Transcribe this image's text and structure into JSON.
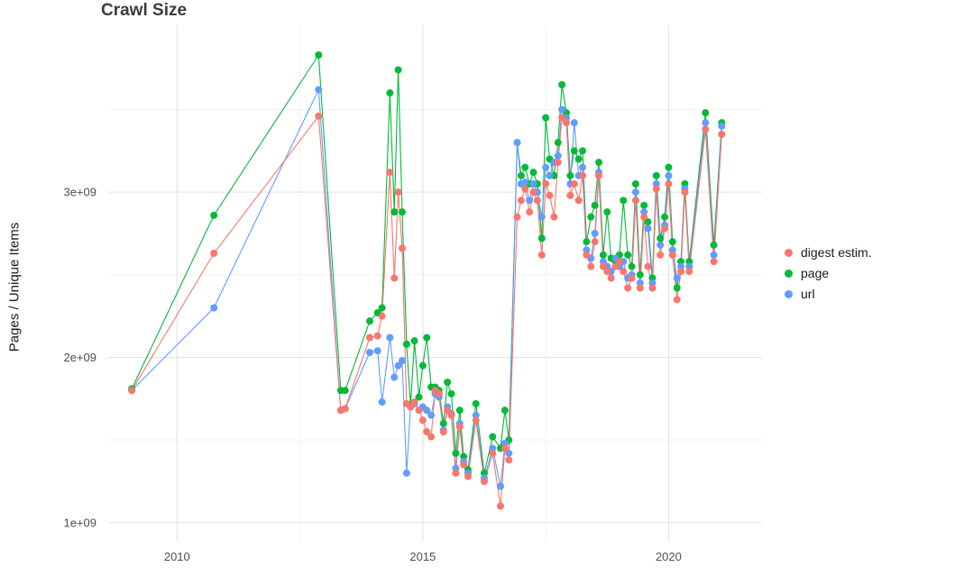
{
  "chart_data": {
    "type": "line",
    "title": "Crawl Size",
    "xlabel": "",
    "ylabel": "Pages / Unique Items",
    "y_unit": "pages (values in billions, 1e9)",
    "legend_position": "right",
    "grid": true,
    "xlim": [
      2008.6,
      2021.9
    ],
    "ylim": [
      0.89,
      4.01
    ],
    "x_ticks": [
      2010,
      2015,
      2020
    ],
    "x_tick_labels": [
      "2010",
      "2015",
      "2020"
    ],
    "x_minor": [
      2012.5,
      2017.5
    ],
    "y_ticks": [
      1,
      2,
      3
    ],
    "y_tick_labels": [
      "1e+09",
      "2e+09",
      "3e+09"
    ],
    "y_minor": [
      1.5,
      2.5,
      3.5
    ],
    "x": [
      2009.08,
      2010.75,
      2012.88,
      2013.33,
      2013.42,
      2013.92,
      2014.08,
      2014.17,
      2014.33,
      2014.42,
      2014.5,
      2014.58,
      2014.67,
      2014.75,
      2014.83,
      2014.92,
      2015.0,
      2015.08,
      2015.17,
      2015.25,
      2015.33,
      2015.42,
      2015.5,
      2015.58,
      2015.67,
      2015.75,
      2015.83,
      2015.92,
      2016.08,
      2016.25,
      2016.42,
      2016.58,
      2016.67,
      2016.75,
      2016.92,
      2017.0,
      2017.08,
      2017.17,
      2017.25,
      2017.33,
      2017.42,
      2017.5,
      2017.58,
      2017.67,
      2017.75,
      2017.83,
      2017.92,
      2018.0,
      2018.08,
      2018.17,
      2018.25,
      2018.33,
      2018.42,
      2018.5,
      2018.58,
      2018.67,
      2018.75,
      2018.83,
      2018.92,
      2019.0,
      2019.08,
      2019.17,
      2019.25,
      2019.33,
      2019.42,
      2019.5,
      2019.58,
      2019.67,
      2019.75,
      2019.83,
      2019.92,
      2020.0,
      2020.08,
      2020.17,
      2020.25,
      2020.33,
      2020.42,
      2020.75,
      2020.92,
      2021.08
    ],
    "series": [
      {
        "name": "digest estim.",
        "color": "#F8766D",
        "values": [
          1.8,
          2.63,
          3.46,
          1.68,
          1.69,
          2.12,
          2.13,
          2.25,
          3.12,
          2.48,
          3.0,
          2.66,
          1.72,
          1.7,
          1.73,
          1.68,
          1.62,
          1.55,
          1.52,
          1.8,
          1.78,
          1.55,
          1.68,
          1.65,
          1.3,
          1.58,
          1.35,
          1.28,
          1.62,
          1.25,
          1.42,
          1.1,
          1.45,
          1.38,
          2.85,
          2.95,
          3.02,
          2.88,
          3.0,
          2.95,
          2.62,
          3.05,
          2.98,
          2.85,
          3.18,
          3.45,
          3.42,
          2.98,
          3.05,
          2.95,
          3.1,
          2.62,
          2.55,
          2.7,
          3.1,
          2.55,
          2.52,
          2.48,
          2.55,
          2.58,
          2.52,
          2.42,
          2.48,
          2.95,
          2.42,
          2.85,
          2.55,
          2.42,
          3.02,
          2.62,
          2.78,
          3.05,
          2.62,
          2.35,
          2.52,
          3.0,
          2.52,
          3.38,
          2.58,
          3.35
        ]
      },
      {
        "name": "page",
        "color": "#00BA38",
        "values": [
          1.81,
          2.86,
          3.83,
          1.8,
          1.8,
          2.22,
          2.27,
          2.3,
          3.6,
          2.88,
          3.74,
          2.88,
          2.08,
          1.71,
          2.1,
          1.76,
          1.95,
          2.12,
          1.82,
          1.82,
          1.8,
          1.6,
          1.85,
          1.78,
          1.42,
          1.68,
          1.4,
          1.32,
          1.72,
          1.3,
          1.52,
          1.45,
          1.68,
          1.5,
          3.3,
          3.1,
          3.15,
          3.05,
          3.12,
          3.05,
          2.72,
          3.45,
          3.2,
          3.1,
          3.3,
          3.65,
          3.48,
          3.1,
          3.25,
          3.2,
          3.25,
          2.7,
          2.85,
          2.92,
          3.18,
          2.62,
          2.88,
          2.6,
          2.58,
          2.62,
          2.95,
          2.62,
          2.55,
          3.05,
          2.5,
          2.92,
          2.82,
          2.48,
          3.1,
          2.72,
          2.85,
          3.15,
          2.7,
          2.42,
          2.58,
          3.05,
          2.58,
          3.48,
          2.68,
          3.42
        ]
      },
      {
        "name": "url",
        "color": "#619CFF",
        "values": [
          1.8,
          2.3,
          3.62,
          1.68,
          1.69,
          2.03,
          2.04,
          1.73,
          2.12,
          1.88,
          1.95,
          1.98,
          1.3,
          1.7,
          1.72,
          1.68,
          1.7,
          1.68,
          1.65,
          1.78,
          1.76,
          1.56,
          1.7,
          1.66,
          1.33,
          1.6,
          1.37,
          1.3,
          1.65,
          1.27,
          1.45,
          1.22,
          1.48,
          1.42,
          3.3,
          3.05,
          3.06,
          2.95,
          3.05,
          3.0,
          2.85,
          3.15,
          3.1,
          3.18,
          3.22,
          3.5,
          3.45,
          3.05,
          3.42,
          3.1,
          3.15,
          2.65,
          2.6,
          2.75,
          3.12,
          2.58,
          2.55,
          2.52,
          2.6,
          2.55,
          2.58,
          2.48,
          2.5,
          3.0,
          2.45,
          2.88,
          2.78,
          2.45,
          3.05,
          2.68,
          2.8,
          3.1,
          2.65,
          2.48,
          2.55,
          3.02,
          2.55,
          3.42,
          2.62,
          3.4
        ]
      }
    ]
  },
  "colors": {
    "grid_major": "#e5e5e5",
    "grid_minor": "#f2f2f2",
    "title_text": "#3c3c3c",
    "tick_text": "#4d4d4d"
  }
}
